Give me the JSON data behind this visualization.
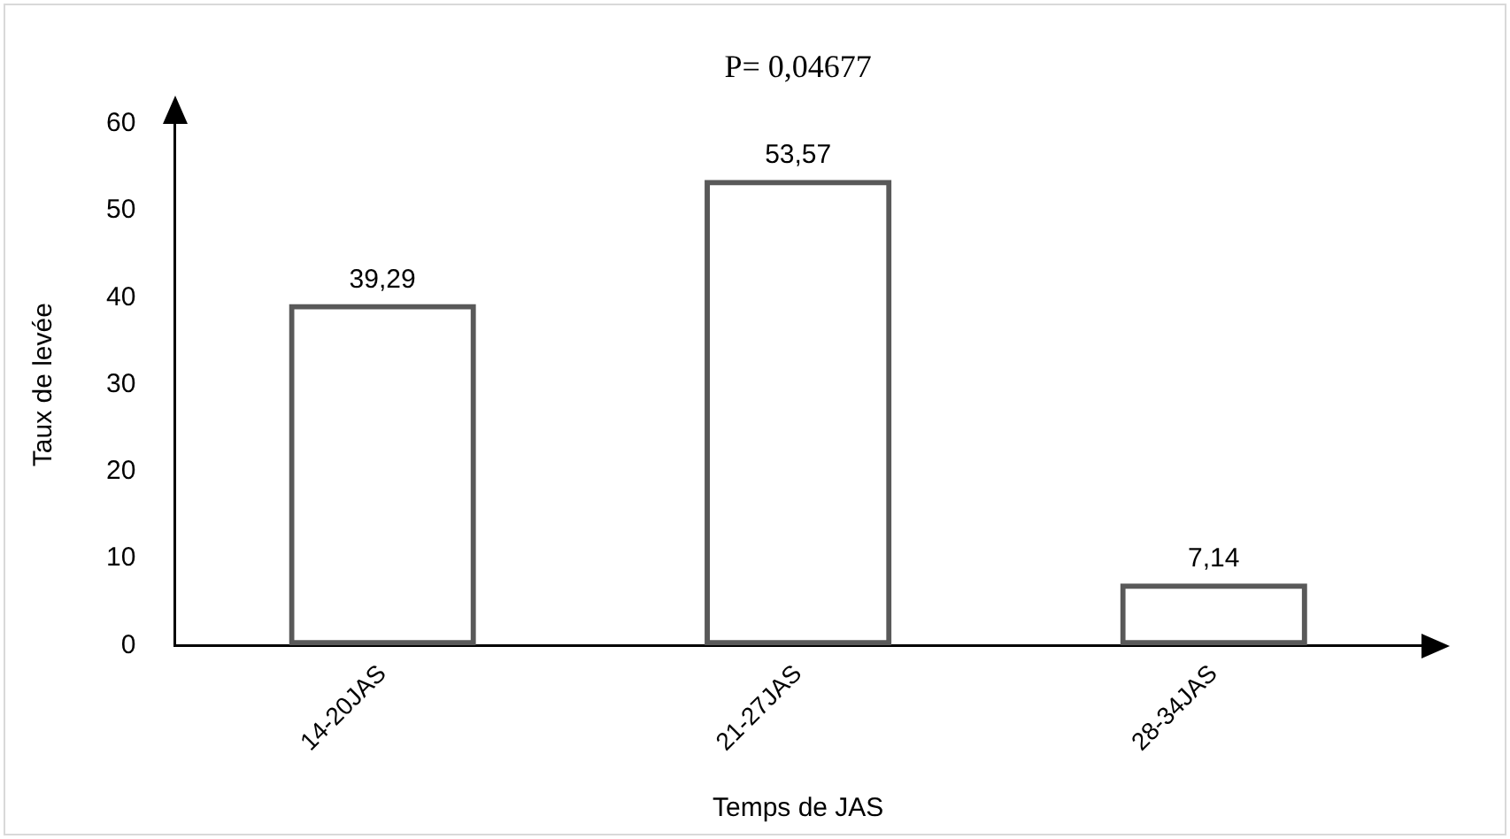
{
  "chart_data": {
    "type": "bar",
    "xlabel": "Temps de JAS",
    "ylabel": "Taux de levée",
    "categories": [
      "14-20JAS",
      "21-27JAS",
      "28-34JAS"
    ],
    "values": [
      39.29,
      53.57,
      7.14
    ],
    "value_labels": [
      "39,29",
      "53,57",
      "7,14"
    ],
    "color": "#595959",
    "ylim": [
      0,
      60
    ],
    "yticks": [
      0,
      10,
      20,
      30,
      40,
      50,
      60
    ],
    "grid": false,
    "legend": false,
    "annotations": [
      "P= 0,04677"
    ]
  }
}
